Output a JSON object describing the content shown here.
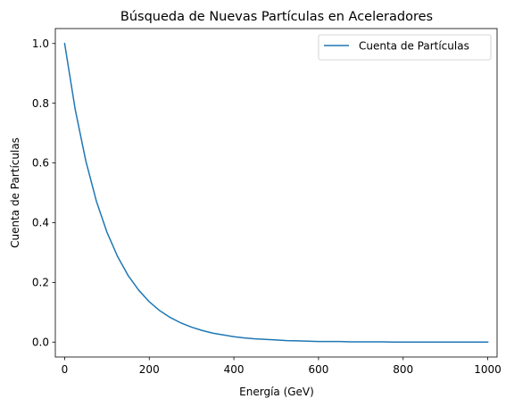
{
  "chart_data": {
    "type": "line",
    "title": "Búsqueda de Nuevas Partículas en Aceleradores",
    "xlabel": "Energía (GeV)",
    "ylabel": "Cuenta de Partículas",
    "xlim": [
      -22,
      1022
    ],
    "ylim": [
      -0.05,
      1.05
    ],
    "xticks": [
      0,
      200,
      400,
      600,
      800,
      1000
    ],
    "xtick_labels": [
      "0",
      "200",
      "400",
      "600",
      "800",
      "1000"
    ],
    "yticks": [
      0.0,
      0.2,
      0.4,
      0.6,
      0.8,
      1.0
    ],
    "ytick_labels": [
      "0.0",
      "0.2",
      "0.4",
      "0.6",
      "0.8",
      "1.0"
    ],
    "grid": false,
    "legend_position": "top-right",
    "series": [
      {
        "name": "Cuenta de Partículas",
        "color": "#1f77b4",
        "x": [
          0,
          25,
          50,
          75,
          100,
          125,
          150,
          175,
          200,
          225,
          250,
          275,
          300,
          325,
          350,
          375,
          400,
          425,
          450,
          475,
          500,
          525,
          550,
          575,
          600,
          625,
          650,
          675,
          700,
          725,
          750,
          775,
          800,
          825,
          850,
          875,
          900,
          925,
          950,
          975,
          1000
        ],
        "y": [
          1.0,
          0.779,
          0.607,
          0.472,
          0.368,
          0.287,
          0.223,
          0.174,
          0.135,
          0.105,
          0.082,
          0.064,
          0.05,
          0.039,
          0.03,
          0.024,
          0.018,
          0.014,
          0.011,
          0.009,
          0.007,
          0.005,
          0.004,
          0.003,
          0.002,
          0.002,
          0.002,
          0.001,
          0.001,
          0.001,
          0.001,
          0.0,
          0.0,
          0.0,
          0.0,
          0.0,
          0.0,
          0.0,
          0.0,
          0.0,
          0.0
        ]
      }
    ]
  }
}
